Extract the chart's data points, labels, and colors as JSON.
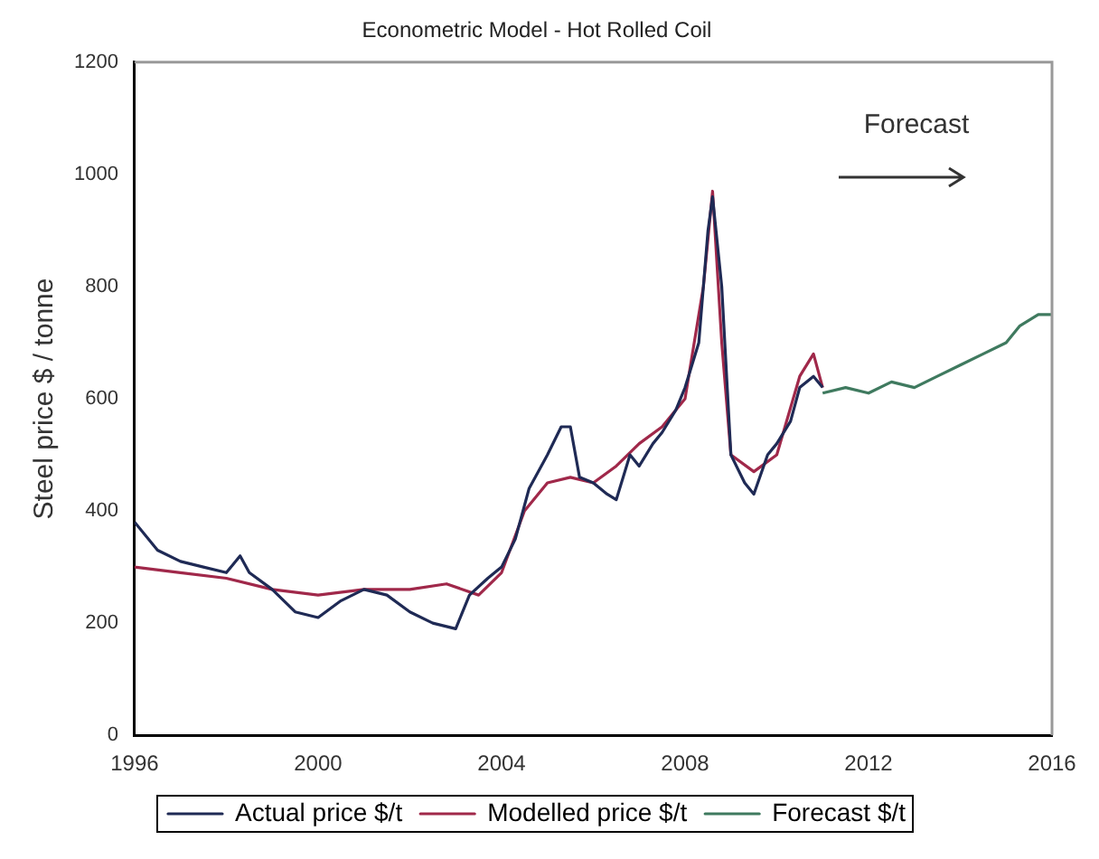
{
  "chart_data": {
    "type": "line",
    "title": "Econometric Model - Hot Rolled Coil",
    "ylabel": "Steel price $ / tonne",
    "annotations": [
      "Forecast"
    ],
    "xlim": [
      1996,
      2016
    ],
    "xticks": [
      1996,
      2000,
      2004,
      2008,
      2012,
      2016
    ],
    "ylim": [
      0,
      1200
    ],
    "yticks": [
      0,
      200,
      400,
      600,
      800,
      1000,
      1200
    ],
    "grid": false,
    "legend": "bottom",
    "marker": "none",
    "line_style": "solid",
    "series": [
      {
        "name": "Actual price $/t",
        "color": "#1f2a55",
        "x": [
          1996,
          1996.5,
          1997,
          1997.5,
          1998,
          1998.3,
          1998.5,
          1999,
          1999.5,
          2000,
          2000.5,
          2001,
          2001.5,
          2002,
          2002.5,
          2003,
          2003.3,
          2003.7,
          2004,
          2004.3,
          2004.6,
          2005,
          2005.3,
          2005.5,
          2005.7,
          2006,
          2006.3,
          2006.5,
          2006.8,
          2007,
          2007.3,
          2007.5,
          2007.8,
          2008,
          2008.3,
          2008.5,
          2008.6,
          2008.8,
          2009,
          2009.3,
          2009.5,
          2009.8,
          2010,
          2010.3,
          2010.5,
          2010.8,
          2011
        ],
        "values": [
          380,
          330,
          310,
          300,
          290,
          320,
          290,
          260,
          220,
          210,
          240,
          260,
          250,
          220,
          200,
          190,
          250,
          280,
          300,
          350,
          440,
          500,
          550,
          550,
          460,
          450,
          430,
          420,
          500,
          480,
          520,
          540,
          580,
          620,
          700,
          900,
          960,
          800,
          500,
          450,
          430,
          500,
          520,
          560,
          620,
          640,
          620
        ]
      },
      {
        "name": "Modelled price $/t",
        "color": "#a0284a",
        "x": [
          1996,
          1997,
          1998,
          1999,
          2000,
          2001,
          2002,
          2002.8,
          2003.5,
          2004,
          2004.5,
          2005,
          2005.5,
          2006,
          2006.5,
          2007,
          2007.5,
          2008,
          2008.4,
          2008.6,
          2008.8,
          2009,
          2009.5,
          2010,
          2010.5,
          2010.8,
          2011
        ],
        "values": [
          300,
          290,
          280,
          260,
          250,
          260,
          260,
          270,
          250,
          290,
          400,
          450,
          460,
          450,
          480,
          520,
          550,
          600,
          800,
          970,
          700,
          500,
          470,
          500,
          640,
          680,
          620
        ]
      },
      {
        "name": "Forecast $/t",
        "color": "#3f7a5f",
        "x": [
          2011,
          2011.5,
          2012,
          2012.5,
          2013,
          2013.5,
          2014,
          2014.5,
          2015,
          2015.3,
          2015.7,
          2016
        ],
        "values": [
          610,
          620,
          610,
          630,
          620,
          640,
          660,
          680,
          700,
          730,
          750,
          750
        ]
      }
    ]
  }
}
